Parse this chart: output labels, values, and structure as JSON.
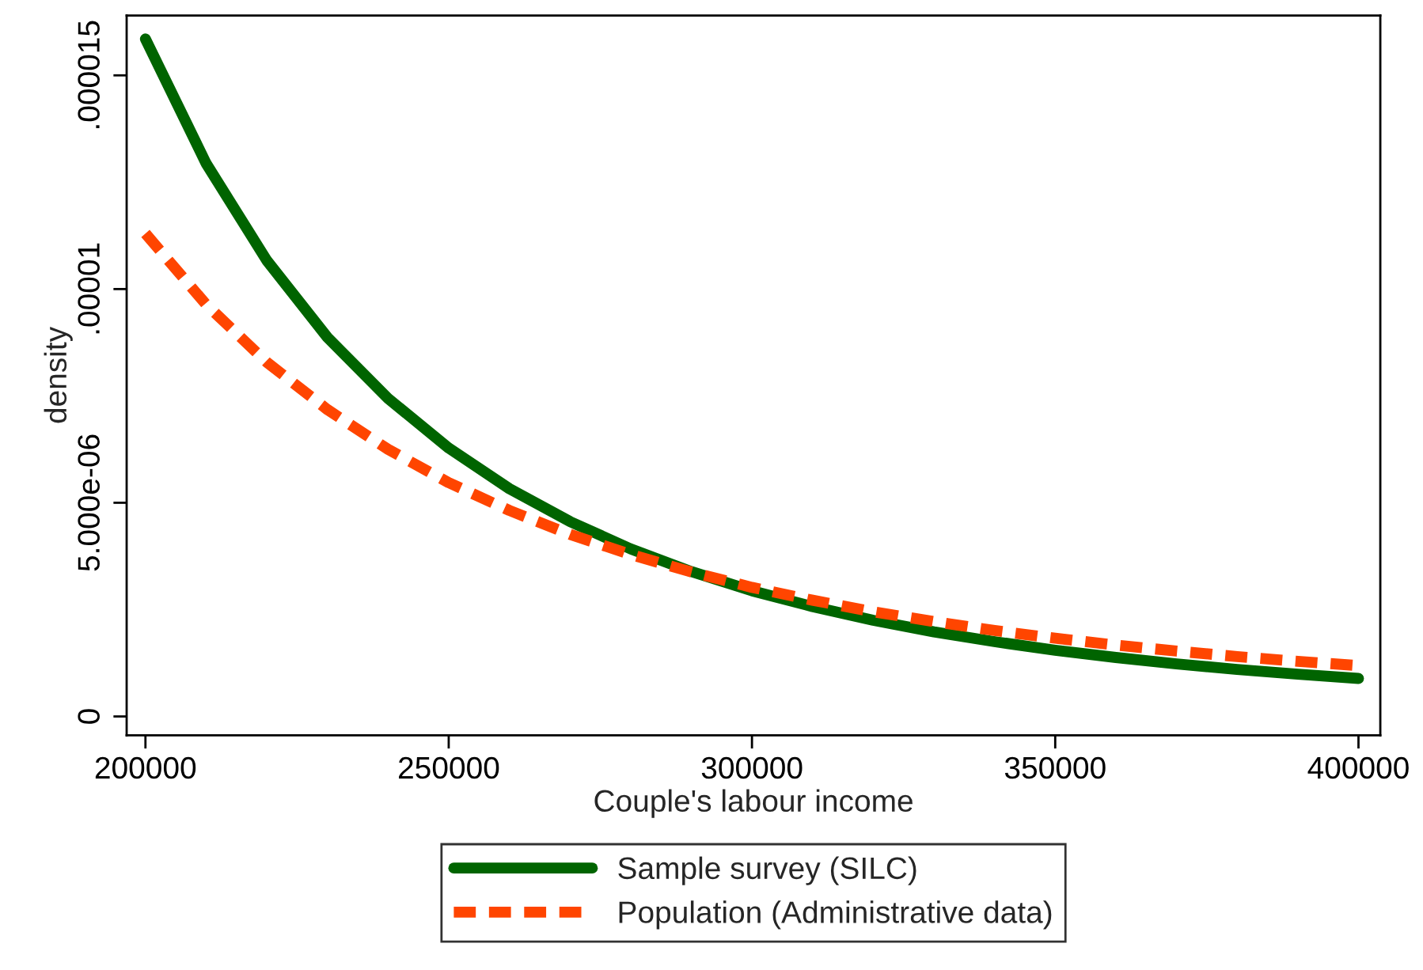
{
  "chart_data": {
    "type": "line",
    "xlabel": "Couple's labour income",
    "ylabel": "density",
    "x": [
      200000,
      210000,
      220000,
      230000,
      240000,
      250000,
      260000,
      270000,
      280000,
      290000,
      300000,
      310000,
      320000,
      330000,
      340000,
      350000,
      360000,
      370000,
      380000,
      390000,
      400000
    ],
    "series": [
      {
        "name": "Sample survey (SILC)",
        "color": "#006400",
        "line_style": "solid",
        "values": [
          1.585e-05,
          1.294e-05,
          1.067e-05,
          8.87e-06,
          7.44e-06,
          6.28e-06,
          5.33e-06,
          4.56e-06,
          3.92e-06,
          3.39e-06,
          2.94e-06,
          2.57e-06,
          2.25e-06,
          1.98e-06,
          1.75e-06,
          1.55e-06,
          1.38e-06,
          1.23e-06,
          1.1e-06,
          9.9e-07,
          8.9e-07
        ]
      },
      {
        "name": "Population (Administrative data)",
        "color": "#ff4500",
        "line_style": "dashed",
        "values": [
          1.13e-05,
          9.64e-06,
          8.29e-06,
          7.18e-06,
          6.25e-06,
          5.47e-06,
          4.82e-06,
          4.26e-06,
          3.79e-06,
          3.38e-06,
          3.02e-06,
          2.72e-06,
          2.45e-06,
          2.22e-06,
          2.01e-06,
          1.83e-06,
          1.67e-06,
          1.53e-06,
          1.4e-06,
          1.29e-06,
          1.19e-06
        ]
      }
    ],
    "xlim": [
      196900,
      403600
    ],
    "ylim": [
      -4.4e-07,
      1.64e-05
    ],
    "xticks": [
      200000,
      250000,
      300000,
      350000,
      400000
    ],
    "yticks": [
      {
        "value": 0,
        "label": "0"
      },
      {
        "value": 5e-06,
        "label": "5.000e-06"
      },
      {
        "value": 1e-05,
        "label": ".00001"
      },
      {
        "value": 1.5e-05,
        "label": ".000015"
      }
    ],
    "grid": false,
    "legend": "bottom"
  }
}
